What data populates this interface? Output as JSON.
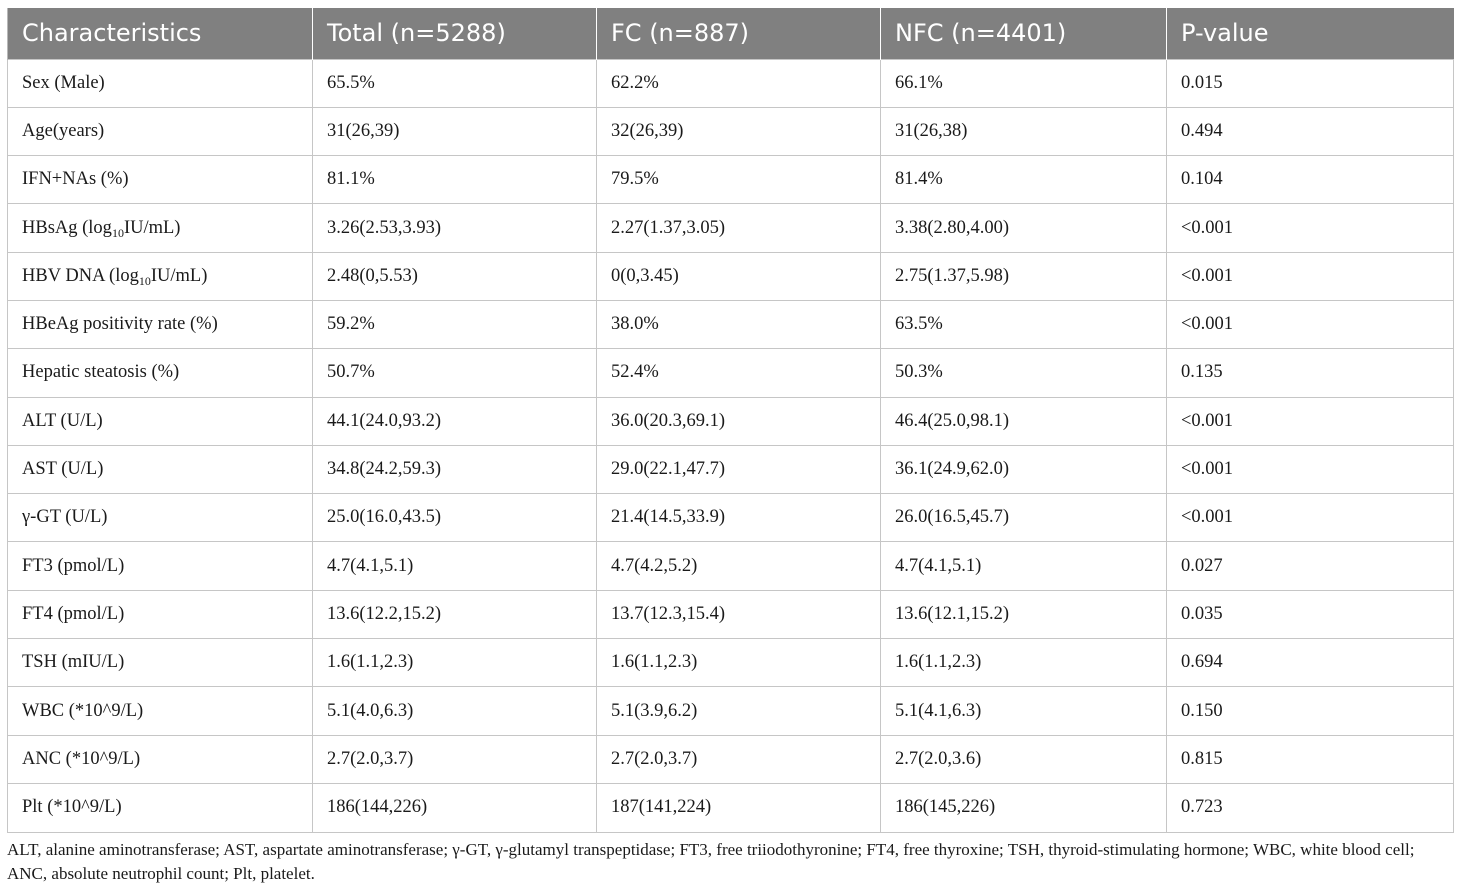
{
  "table": {
    "headers": [
      "Characteristics",
      "Total (n=5288)",
      "FC (n=887)",
      "NFC (n=4401)",
      "P-value"
    ],
    "rows": [
      {
        "label": "Sex (Male)",
        "label_sub": "",
        "label_rest": "",
        "total": "65.5%",
        "fc": "62.2%",
        "nfc": "66.1%",
        "p": "0.015"
      },
      {
        "label": "Age(years)",
        "label_sub": "",
        "label_rest": "",
        "total": "31(26,39)",
        "fc": "32(26,39)",
        "nfc": "31(26,38)",
        "p": "0.494"
      },
      {
        "label": "IFN+NAs (%)",
        "label_sub": "",
        "label_rest": "",
        "total": "81.1%",
        "fc": "79.5%",
        "nfc": "81.4%",
        "p": "0.104"
      },
      {
        "label": "HBsAg (log",
        "label_sub": "10",
        "label_rest": "IU/mL)",
        "total": "3.26(2.53,3.93)",
        "fc": "2.27(1.37,3.05)",
        "nfc": "3.38(2.80,4.00)",
        "p": "<0.001"
      },
      {
        "label": "HBV DNA (log",
        "label_sub": "10",
        "label_rest": "IU/mL)",
        "total": "2.48(0,5.53)",
        "fc": "0(0,3.45)",
        "nfc": "2.75(1.37,5.98)",
        "p": "<0.001"
      },
      {
        "label": "HBeAg positivity rate (%)",
        "label_sub": "",
        "label_rest": "",
        "total": "59.2%",
        "fc": "38.0%",
        "nfc": "63.5%",
        "p": "<0.001"
      },
      {
        "label": "Hepatic steatosis (%)",
        "label_sub": "",
        "label_rest": "",
        "total": "50.7%",
        "fc": "52.4%",
        "nfc": "50.3%",
        "p": "0.135"
      },
      {
        "label": "ALT (U/L)",
        "label_sub": "",
        "label_rest": "",
        "total": "44.1(24.0,93.2)",
        "fc": "36.0(20.3,69.1)",
        "nfc": "46.4(25.0,98.1)",
        "p": "<0.001"
      },
      {
        "label": "AST (U/L)",
        "label_sub": "",
        "label_rest": "",
        "total": "34.8(24.2,59.3)",
        "fc": "29.0(22.1,47.7)",
        "nfc": "36.1(24.9,62.0)",
        "p": "<0.001"
      },
      {
        "label": "γ-GT (U/L)",
        "label_sub": "",
        "label_rest": "",
        "total": "25.0(16.0,43.5)",
        "fc": "21.4(14.5,33.9)",
        "nfc": "26.0(16.5,45.7)",
        "p": "<0.001"
      },
      {
        "label": "FT3 (pmol/L)",
        "label_sub": "",
        "label_rest": "",
        "total": "4.7(4.1,5.1)",
        "fc": "4.7(4.2,5.2)",
        "nfc": "4.7(4.1,5.1)",
        "p": "0.027"
      },
      {
        "label": "FT4 (pmol/L)",
        "label_sub": "",
        "label_rest": "",
        "total": "13.6(12.2,15.2)",
        "fc": "13.7(12.3,15.4)",
        "nfc": "13.6(12.1,15.2)",
        "p": "0.035"
      },
      {
        "label": "TSH (mIU/L)",
        "label_sub": "",
        "label_rest": "",
        "total": "1.6(1.1,2.3)",
        "fc": "1.6(1.1,2.3)",
        "nfc": "1.6(1.1,2.3)",
        "p": "0.694"
      },
      {
        "label": "WBC (*10^9/L)",
        "label_sub": "",
        "label_rest": "",
        "total": "5.1(4.0,6.3)",
        "fc": "5.1(3.9,6.2)",
        "nfc": "5.1(4.1,6.3)",
        "p": "0.150"
      },
      {
        "label": "ANC (*10^9/L)",
        "label_sub": "",
        "label_rest": "",
        "total": "2.7(2.0,3.7)",
        "fc": "2.7(2.0,3.7)",
        "nfc": "2.7(2.0,3.6)",
        "p": "0.815"
      },
      {
        "label": "Plt (*10^9/L)",
        "label_sub": "",
        "label_rest": "",
        "total": "186(144,226)",
        "fc": "187(141,224)",
        "nfc": "186(145,226)",
        "p": "0.723"
      }
    ]
  },
  "footnote": "ALT, alanine aminotransferase; AST, aspartate aminotransferase; γ-GT, γ-glutamyl transpeptidase; FT3, free triiodothyronine; FT4, free thyroxine; TSH, thyroid-stimulating hormone; WBC, white blood cell; ANC, absolute neutrophil count; Plt, platelet."
}
